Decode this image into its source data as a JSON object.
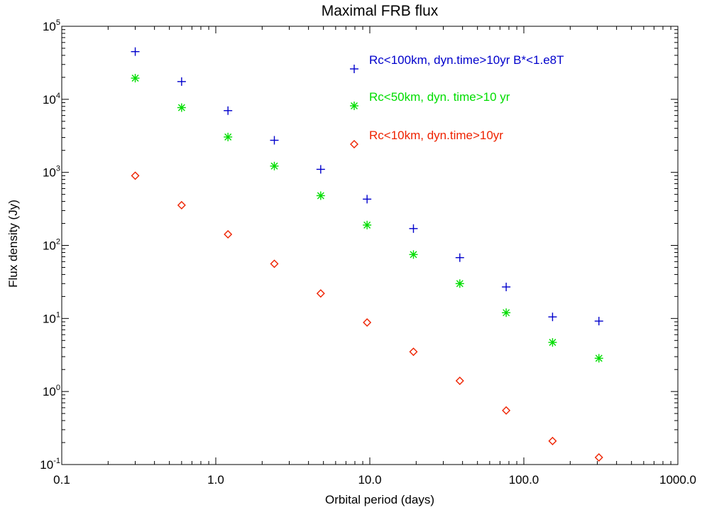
{
  "chart_data": {
    "type": "scatter",
    "title": "Maximal FRB flux",
    "xlabel": "Orbital period (days)",
    "ylabel": "Flux density (Jy)",
    "xscale": "log",
    "yscale": "log",
    "xlim": [
      0.1,
      1000.0
    ],
    "ylim": [
      0.1,
      100000
    ],
    "grid": false,
    "legend_position": "top-right",
    "x_tick_labels": [
      "0.1",
      "1.0",
      "10.0",
      "100.0",
      "1000.0"
    ],
    "y_tick_labels": [
      {
        "base": "10",
        "exp": "-1"
      },
      {
        "base": "10",
        "exp": "0"
      },
      {
        "base": "10",
        "exp": "1"
      },
      {
        "base": "10",
        "exp": "2"
      },
      {
        "base": "10",
        "exp": "3"
      },
      {
        "base": "10",
        "exp": "4"
      },
      {
        "base": "10",
        "exp": "5"
      }
    ],
    "x": [
      0.3,
      0.6,
      1.2,
      2.4,
      4.8,
      9.6,
      19.2,
      38.4,
      76.8,
      153.6,
      307.2
    ],
    "series": [
      {
        "name": "Rc<100km, dyn.time>10yr B*<1.e8T",
        "marker": "plus",
        "color": "#0000cc",
        "values": [
          45000,
          17500,
          7000,
          2750,
          1100,
          430,
          170,
          68,
          27,
          10.5,
          9.2
        ]
      },
      {
        "name": "Rc<50km, dyn. time>10 yr",
        "marker": "asterisk",
        "color": "#00dd00",
        "values": [
          19500,
          7700,
          3050,
          1220,
          480,
          190,
          75,
          30,
          12,
          4.7,
          2.85
        ]
      },
      {
        "name": "Rc<10km, dyn.time>10yr",
        "marker": "diamond",
        "color": "#ee2200",
        "values": [
          900,
          355,
          142,
          56,
          22,
          8.8,
          3.5,
          1.4,
          0.55,
          0.21,
          0.125
        ]
      }
    ]
  }
}
